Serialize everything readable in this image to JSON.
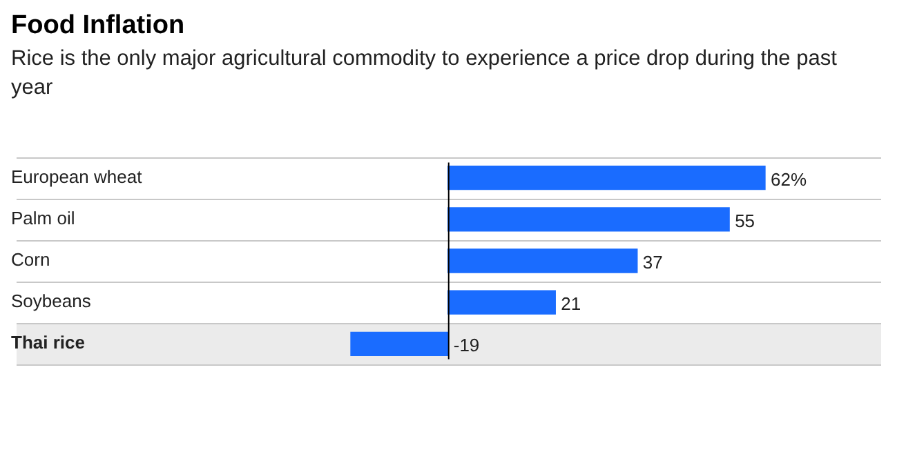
{
  "chart_data": {
    "type": "bar",
    "orientation": "horizontal",
    "title": "Food Inflation",
    "subtitle": "Rice is the only major agricultural commodity to experience a price drop during the past year",
    "categories": [
      "European wheat",
      "Palm oil",
      "Corn",
      "Soybeans",
      "Thai rice"
    ],
    "values": [
      62,
      55,
      37,
      21,
      -19
    ],
    "value_labels": [
      "62%",
      "55",
      "37",
      "21",
      "-19"
    ],
    "color": "#1a6cff",
    "grid": "y",
    "legend": false
  }
}
